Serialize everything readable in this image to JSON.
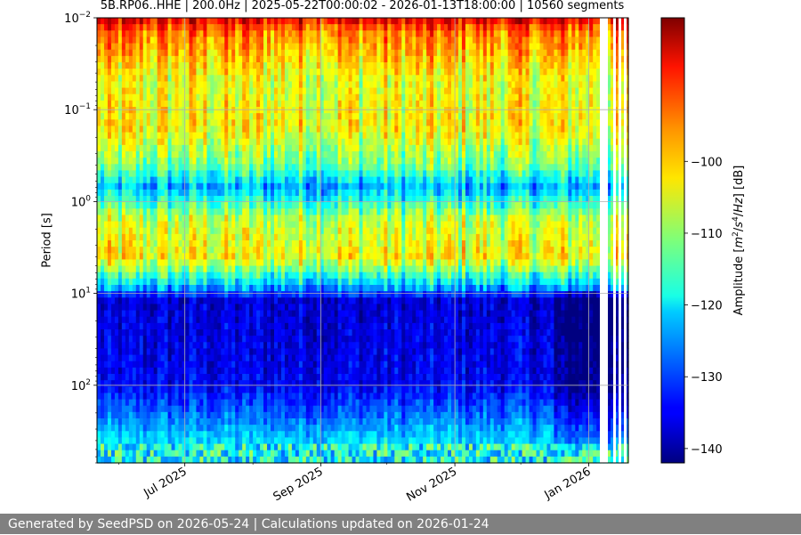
{
  "chart_data": {
    "type": "heatmap",
    "title": "5B.RP06..HHE | 200.0Hz | 2025-05-22T00:00:02 - 2026-01-13T18:00:00 | 10560 segments",
    "xlabel": "",
    "ylabel": "Period [s]",
    "y_scale": "log",
    "y_inverted": true,
    "ylim": [
      0.01,
      700
    ],
    "xlim": [
      "2025-05-22",
      "2026-01-19"
    ],
    "x_ticks": [
      {
        "date": "2025-07-01",
        "label": "Jul 2025"
      },
      {
        "date": "2025-09-01",
        "label": "Sep 2025"
      },
      {
        "date": "2025-11-01",
        "label": "Nov 2025"
      },
      {
        "date": "2026-01-01",
        "label": "Jan 2026"
      }
    ],
    "y_ticks": [
      {
        "value": 0.01,
        "base": "10",
        "exp": "−2"
      },
      {
        "value": 0.1,
        "base": "10",
        "exp": "−1"
      },
      {
        "value": 1,
        "base": "10",
        "exp": "0"
      },
      {
        "value": 10,
        "base": "10",
        "exp": "1"
      },
      {
        "value": 100,
        "base": "10",
        "exp": "2"
      }
    ],
    "grid": true,
    "colormap": "jet",
    "colorbar": {
      "label": "Amplitude [m²/s⁴/Hz] [dB]",
      "range": [
        -142,
        -80
      ],
      "ticks": [
        {
          "value": -100,
          "label": "−100"
        },
        {
          "value": -110,
          "label": "−110"
        },
        {
          "value": -120,
          "label": "−120"
        },
        {
          "value": -130,
          "label": "−130"
        },
        {
          "value": -140,
          "label": "−140"
        }
      ]
    },
    "period_profile_db": [
      {
        "period": 0.01,
        "db": -86
      },
      {
        "period": 0.014,
        "db": -95
      },
      {
        "period": 0.05,
        "db": -105
      },
      {
        "period": 0.15,
        "db": -103
      },
      {
        "period": 0.4,
        "db": -112
      },
      {
        "period": 0.7,
        "db": -124
      },
      {
        "period": 1.5,
        "db": -108
      },
      {
        "period": 4,
        "db": -103
      },
      {
        "period": 8,
        "db": -122
      },
      {
        "period": 12,
        "db": -137
      },
      {
        "period": 100,
        "db": -135
      },
      {
        "period": 250,
        "db": -126
      },
      {
        "period": 700,
        "db": -115
      }
    ]
  },
  "footer": {
    "text": "Generated by SeedPSD on 2026-05-24 | Calculations updated on 2026-01-24"
  }
}
